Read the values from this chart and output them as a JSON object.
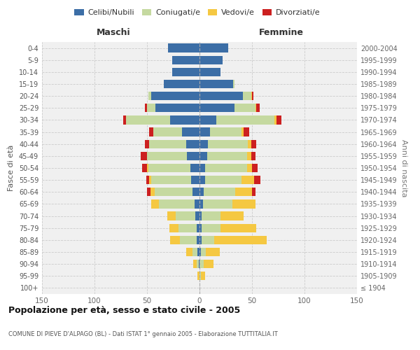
{
  "age_groups": [
    "100+",
    "95-99",
    "90-94",
    "85-89",
    "80-84",
    "75-79",
    "70-74",
    "65-69",
    "60-64",
    "55-59",
    "50-54",
    "45-49",
    "40-44",
    "35-39",
    "30-34",
    "25-29",
    "20-24",
    "15-19",
    "10-14",
    "5-9",
    "0-4"
  ],
  "birth_years": [
    "≤ 1904",
    "1905-1909",
    "1910-1914",
    "1915-1919",
    "1920-1924",
    "1925-1929",
    "1930-1934",
    "1935-1939",
    "1940-1944",
    "1945-1949",
    "1950-1954",
    "1955-1959",
    "1960-1964",
    "1965-1969",
    "1970-1974",
    "1975-1979",
    "1980-1984",
    "1985-1989",
    "1990-1994",
    "1995-1999",
    "2000-2004"
  ],
  "males_celibi": [
    0,
    0,
    1,
    2,
    3,
    3,
    4,
    5,
    7,
    8,
    9,
    12,
    13,
    17,
    28,
    42,
    46,
    34,
    26,
    26,
    30
  ],
  "males_coniugati": [
    0,
    0,
    2,
    5,
    16,
    17,
    19,
    34,
    36,
    38,
    40,
    38,
    35,
    27,
    42,
    8,
    3,
    0,
    0,
    0,
    0
  ],
  "males_vedovi": [
    0,
    2,
    3,
    6,
    9,
    9,
    8,
    7,
    4,
    2,
    1,
    0,
    0,
    0,
    0,
    0,
    0,
    0,
    0,
    0,
    0
  ],
  "males_divorziati": [
    0,
    0,
    0,
    0,
    0,
    0,
    0,
    0,
    3,
    3,
    5,
    6,
    4,
    4,
    3,
    2,
    0,
    0,
    0,
    0,
    0
  ],
  "females_nubili": [
    0,
    0,
    0,
    1,
    2,
    2,
    2,
    3,
    4,
    5,
    5,
    7,
    8,
    10,
    16,
    33,
    41,
    32,
    20,
    22,
    27
  ],
  "females_coniugate": [
    0,
    1,
    4,
    5,
    12,
    18,
    18,
    28,
    30,
    35,
    40,
    38,
    38,
    30,
    55,
    20,
    8,
    1,
    0,
    0,
    0
  ],
  "females_vedove": [
    0,
    4,
    9,
    13,
    50,
    34,
    22,
    22,
    16,
    12,
    5,
    4,
    3,
    2,
    2,
    1,
    1,
    0,
    0,
    0,
    0
  ],
  "females_divorziate": [
    0,
    0,
    0,
    0,
    0,
    0,
    0,
    0,
    3,
    6,
    5,
    4,
    5,
    5,
    5,
    3,
    1,
    0,
    0,
    0,
    0
  ],
  "colors": {
    "celibi_nubili": "#3c6ea6",
    "coniugati": "#c5d9a0",
    "vedovi": "#f5c842",
    "divorziati": "#cc2020"
  },
  "xlim": 150,
  "title": "Popolazione per età, sesso e stato civile - 2005",
  "subtitle": "COMUNE DI PIEVE D'ALPAGO (BL) - Dati ISTAT 1° gennaio 2005 - Elaborazione TUTTITALIA.IT",
  "header_left": "Maschi",
  "header_right": "Femmine",
  "ylabel_left": "Fasce di età",
  "ylabel_right": "Anni di nascita",
  "bg_color": "#f0f0f0",
  "grid_color": "#cccccc",
  "legend_labels": [
    "Celibi/Nubili",
    "Coniugati/e",
    "Vedovi/e",
    "Divorziati/e"
  ]
}
